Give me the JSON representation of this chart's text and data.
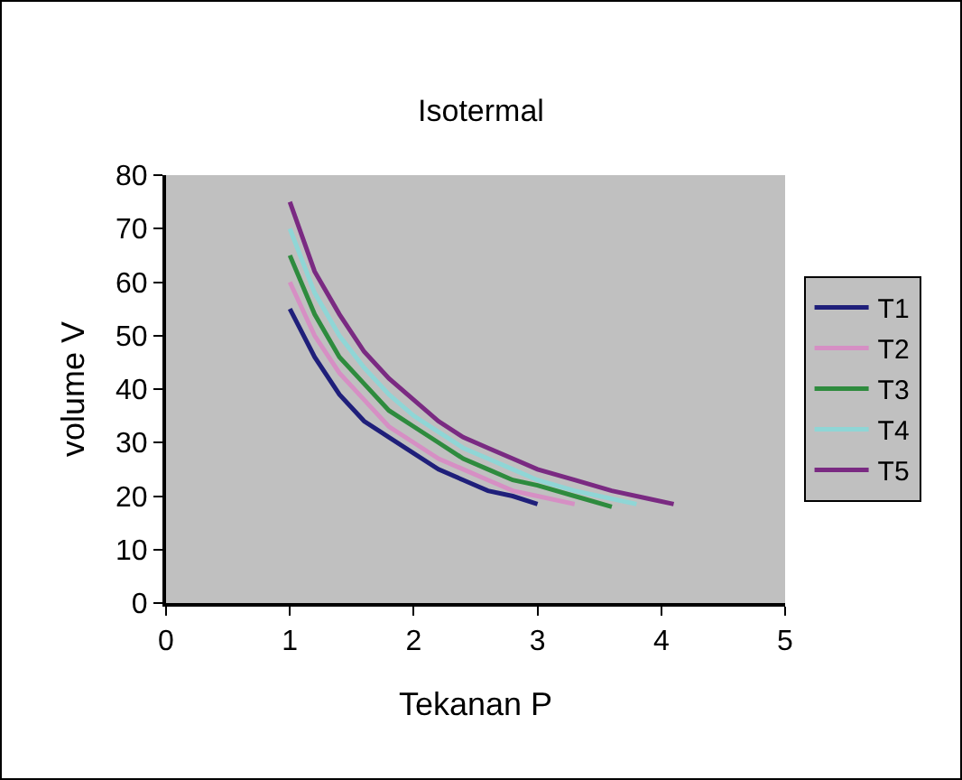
{
  "chart_data": {
    "type": "line",
    "title": "Isotermal",
    "xlabel": "Tekanan P",
    "ylabel": "volume V",
    "xlim": [
      0,
      5
    ],
    "xticks": [
      0,
      1,
      2,
      3,
      4,
      5
    ],
    "ylim": [
      0,
      80
    ],
    "yticks": [
      0,
      10,
      20,
      30,
      40,
      50,
      60,
      70,
      80
    ],
    "grid": false,
    "legend": "right",
    "marker": "none",
    "line_style": "solid",
    "series": [
      {
        "name": "T1",
        "color": "#1f1f7a",
        "x": [
          1,
          1.2,
          1.4,
          1.6,
          1.8,
          2,
          2.2,
          2.4,
          2.6,
          2.8,
          3
        ],
        "values": [
          55,
          46,
          39,
          34,
          31,
          28,
          25,
          23,
          21,
          20,
          18.5
        ]
      },
      {
        "name": "T2",
        "color": "#d68fc4",
        "x": [
          1,
          1.2,
          1.4,
          1.6,
          1.8,
          2,
          2.2,
          2.4,
          2.6,
          2.8,
          3,
          3.3
        ],
        "values": [
          60,
          50,
          43,
          38,
          33,
          30,
          27,
          25,
          23,
          21,
          20,
          18.5
        ]
      },
      {
        "name": "T3",
        "color": "#2e8b3e",
        "x": [
          1,
          1.2,
          1.4,
          1.6,
          1.8,
          2,
          2.2,
          2.4,
          2.6,
          2.8,
          3,
          3.3,
          3.6
        ],
        "values": [
          65,
          54,
          46,
          41,
          36,
          33,
          30,
          27,
          25,
          23,
          22,
          20,
          18
        ]
      },
      {
        "name": "T4",
        "color": "#8fd6d6",
        "x": [
          1,
          1.2,
          1.4,
          1.6,
          1.8,
          2,
          2.2,
          2.4,
          2.6,
          2.8,
          3,
          3.3,
          3.6,
          3.8
        ],
        "values": [
          70,
          58,
          50,
          44,
          39,
          35,
          32,
          29,
          27,
          25,
          23,
          21,
          19.5,
          18.5
        ]
      },
      {
        "name": "T5",
        "color": "#7a2a82",
        "x": [
          1,
          1.2,
          1.4,
          1.6,
          1.8,
          2,
          2.2,
          2.4,
          2.6,
          2.8,
          3,
          3.3,
          3.6,
          3.9,
          4.1
        ],
        "values": [
          75,
          62,
          54,
          47,
          42,
          38,
          34,
          31,
          29,
          27,
          25,
          23,
          21,
          19.5,
          18.5
        ]
      }
    ]
  }
}
